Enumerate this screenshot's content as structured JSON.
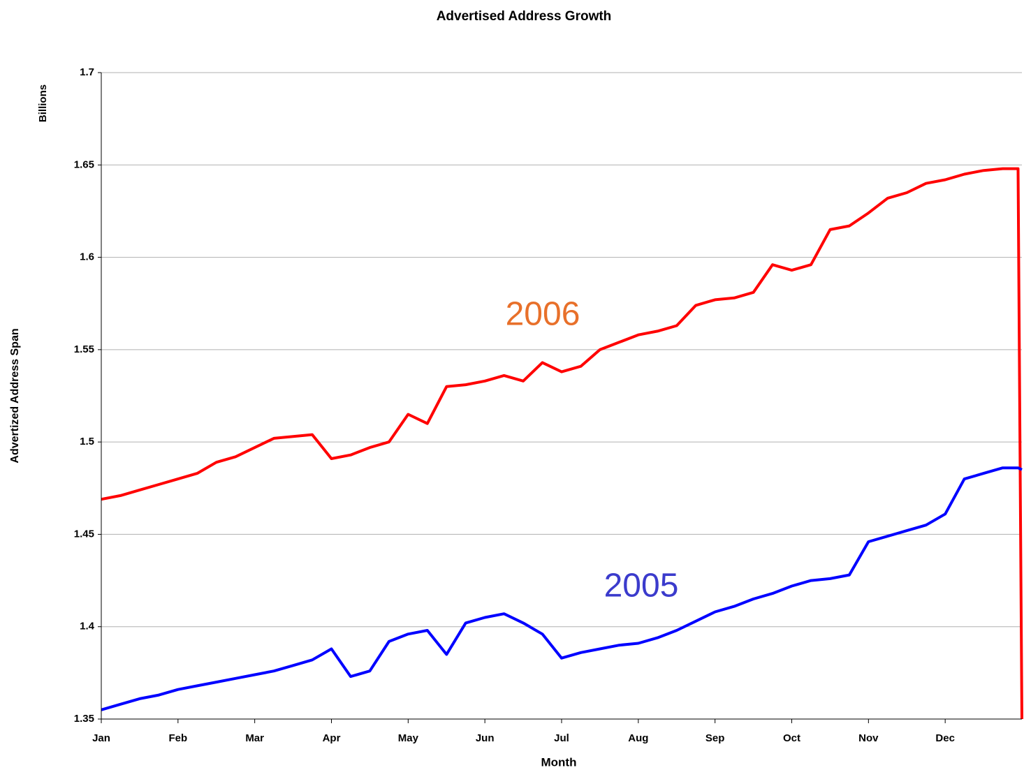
{
  "chart_data": {
    "type": "line",
    "title": "Advertised Address Growth",
    "x_label": "Month",
    "y_label": "Advertized Address Span",
    "y_unit": "Billions",
    "annotations": [
      "2006",
      "2005"
    ],
    "x": [
      0,
      0.25,
      0.5,
      0.75,
      1,
      1.25,
      1.5,
      1.75,
      2,
      2.25,
      2.5,
      2.75,
      3,
      3.25,
      3.5,
      3.75,
      4,
      4.25,
      4.5,
      4.75,
      5,
      5.25,
      5.5,
      5.75,
      6,
      6.25,
      6.5,
      6.75,
      7,
      7.25,
      7.5,
      7.75,
      8,
      8.25,
      8.5,
      8.75,
      9,
      9.25,
      9.5,
      9.75,
      10,
      10.25,
      10.5,
      10.75,
      11,
      11.25,
      11.5,
      11.75,
      11.95,
      12
    ],
    "series": [
      {
        "name": "2006",
        "color": "#ff0000",
        "values": [
          1.469,
          1.471,
          1.474,
          1.477,
          1.48,
          1.483,
          1.489,
          1.492,
          1.497,
          1.502,
          1.503,
          1.504,
          1.491,
          1.493,
          1.497,
          1.5,
          1.515,
          1.51,
          1.53,
          1.531,
          1.533,
          1.536,
          1.533,
          1.543,
          1.538,
          1.541,
          1.55,
          1.554,
          1.558,
          1.56,
          1.563,
          1.574,
          1.577,
          1.578,
          1.581,
          1.596,
          1.593,
          1.596,
          1.615,
          1.617,
          1.624,
          1.632,
          1.635,
          1.64,
          1.642,
          1.645,
          1.647,
          1.648,
          1.648,
          1.35
        ]
      },
      {
        "name": "2005",
        "color": "#0000ff",
        "values": [
          1.355,
          1.358,
          1.361,
          1.363,
          1.366,
          1.368,
          1.37,
          1.372,
          1.374,
          1.376,
          1.379,
          1.382,
          1.388,
          1.373,
          1.376,
          1.392,
          1.396,
          1.398,
          1.385,
          1.402,
          1.405,
          1.407,
          1.402,
          1.396,
          1.383,
          1.386,
          1.388,
          1.39,
          1.391,
          1.394,
          1.398,
          1.403,
          1.408,
          1.411,
          1.415,
          1.418,
          1.422,
          1.425,
          1.426,
          1.428,
          1.446,
          1.449,
          1.452,
          1.455,
          1.461,
          1.48,
          1.483,
          1.486,
          1.486,
          1.485
        ]
      }
    ],
    "xlim": [
      0,
      12
    ],
    "xticks": [
      {
        "value": 0,
        "label": "Jan"
      },
      {
        "value": 1,
        "label": "Feb"
      },
      {
        "value": 2,
        "label": "Mar"
      },
      {
        "value": 3,
        "label": "Apr"
      },
      {
        "value": 4,
        "label": "May"
      },
      {
        "value": 5,
        "label": "Jun"
      },
      {
        "value": 6,
        "label": "Jul"
      },
      {
        "value": 7,
        "label": "Aug"
      },
      {
        "value": 8,
        "label": "Sep"
      },
      {
        "value": 9,
        "label": "Oct"
      },
      {
        "value": 10,
        "label": "Nov"
      },
      {
        "value": 11,
        "label": "Dec"
      }
    ],
    "ylim": [
      1.35,
      1.7
    ],
    "yticks": [
      1.35,
      1.4,
      1.45,
      1.5,
      1.55,
      1.6,
      1.65,
      1.7
    ],
    "grid": true
  }
}
